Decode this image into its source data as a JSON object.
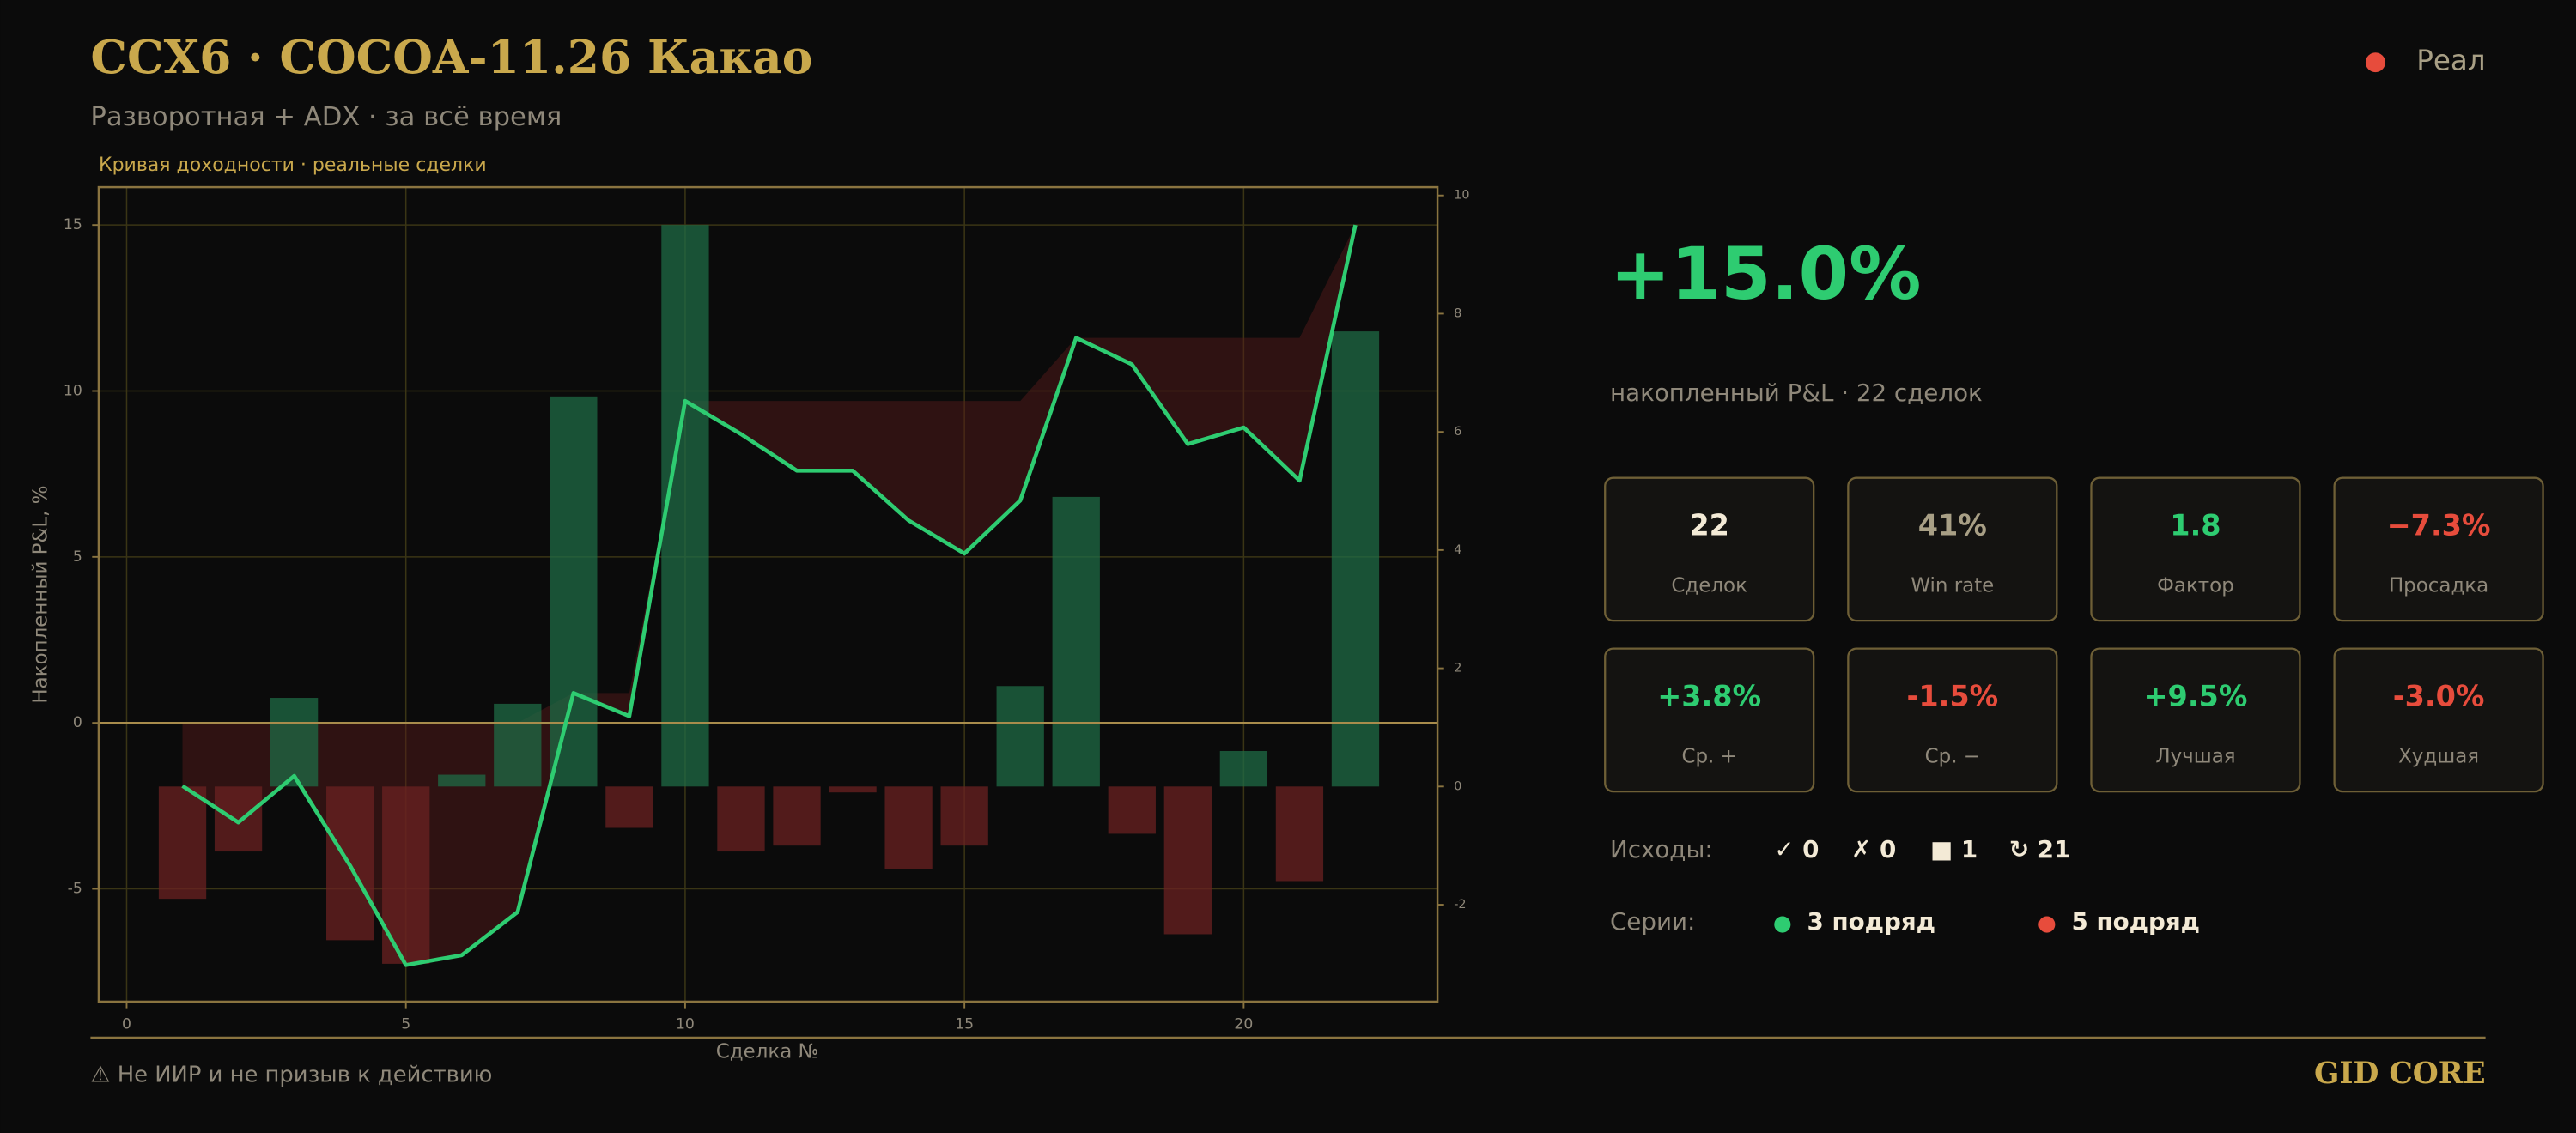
{
  "header": {
    "title": "CCX6 · COCOA-11.26 Какао",
    "subtitle": "Разворотная + ADX · за всё время",
    "status": "Реал",
    "status_color": "#e74c3c"
  },
  "chart_data": {
    "type": "combo",
    "title": "Кривая доходности · реальные сделки",
    "x_label": "Сделка №",
    "y_label": "Накопленный P&L, %",
    "x": [
      1,
      2,
      3,
      4,
      5,
      6,
      7,
      8,
      9,
      10,
      11,
      12,
      13,
      14,
      15,
      16,
      17,
      18,
      19,
      20,
      21,
      22
    ],
    "series": [
      {
        "type": "bar",
        "axis": "y2",
        "color": "#1f6b45",
        "negative_color": "#6b2222",
        "values": [
          -1.9,
          -1.1,
          1.5,
          -2.6,
          -3.0,
          0.2,
          1.4,
          6.6,
          -0.7,
          9.5,
          -1.1,
          -1.0,
          -0.1,
          -1.4,
          -1.0,
          1.7,
          4.9,
          -0.8,
          -2.5,
          0.6,
          -1.6,
          7.7
        ]
      },
      {
        "type": "line",
        "color": "#2ecc71",
        "values": [
          -1.9,
          -3.0,
          -1.6,
          -4.3,
          -7.3,
          -7.0,
          -5.7,
          0.9,
          0.2,
          9.7,
          8.7,
          7.6,
          7.6,
          6.1,
          5.1,
          6.7,
          11.6,
          10.8,
          8.4,
          8.9,
          7.3,
          15.0
        ]
      }
    ],
    "drawdown_color": "#5a1a1a",
    "xlim": [
      -0.5,
      23.47
    ],
    "xticks": [
      0,
      5,
      10,
      15,
      20
    ],
    "ylim": [
      -8.4,
      16.14
    ],
    "yticks": [
      -5,
      0,
      5,
      10,
      15
    ],
    "y2lim": [
      -3.64,
      10.14
    ],
    "y2ticks": [
      -2,
      0,
      2,
      4,
      6,
      8,
      10
    ],
    "grid": true
  },
  "summary": {
    "total": "+15.0%",
    "caption": "накопленный P&L · 22 сделок",
    "cards": [
      {
        "value": "22",
        "label": "Сделок",
        "color": "#f3ead6"
      },
      {
        "value": "41%",
        "label": "Win rate",
        "color": "#a89f85"
      },
      {
        "value": "1.8",
        "label": "Фактор",
        "color": "#2ecc71"
      },
      {
        "value": "−7.3%",
        "label": "Просадка",
        "color": "#e74c3c"
      },
      {
        "value": "+3.8%",
        "label": "Ср. +",
        "color": "#2ecc71"
      },
      {
        "value": "-1.5%",
        "label": "Ср. −",
        "color": "#e74c3c"
      },
      {
        "value": "+9.5%",
        "label": "Лучшая",
        "color": "#2ecc71"
      },
      {
        "value": "-3.0%",
        "label": "Худшая",
        "color": "#e74c3c"
      }
    ],
    "outcomes": {
      "label": "Исходы:",
      "items": [
        "✓ 0",
        "✗ 0",
        "■ 1",
        "↻ 21"
      ]
    },
    "streaks": {
      "label": "Серии:",
      "items": [
        {
          "text": "3 подряд",
          "color": "#2ecc71"
        },
        {
          "text": "5 подряд",
          "color": "#e74c3c"
        }
      ]
    }
  },
  "footer": {
    "disclaimer": "⚠ Не ИИР и не призыв к действию",
    "brand": "GID CORE"
  }
}
